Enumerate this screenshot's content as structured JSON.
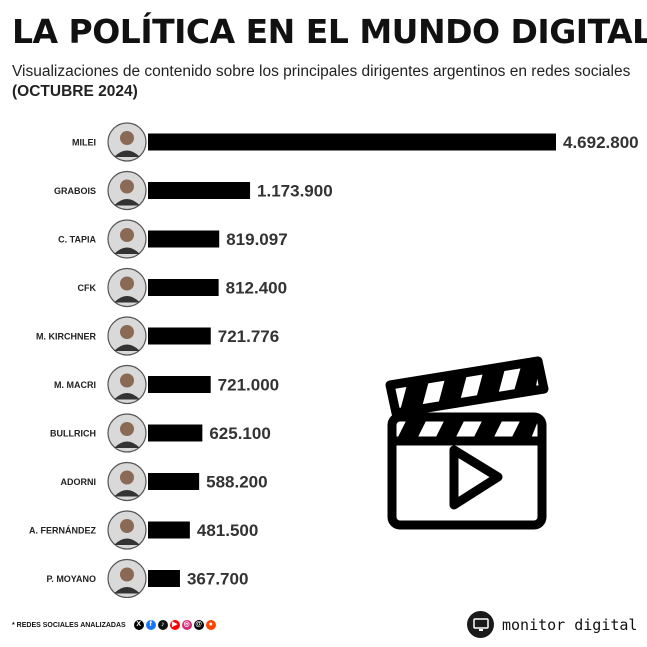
{
  "header": {
    "title": "LA POLÍTICA EN EL MUNDO DIGITAL",
    "subtitle": "Visualizaciones de contenido sobre los principales dirigentes argentinos en redes sociales",
    "subtitle_bold": "(OCTUBRE 2024)"
  },
  "chart_data": {
    "type": "bar",
    "orientation": "horizontal",
    "categories": [
      "MILEI",
      "GRABOIS",
      "C. TAPIA",
      "CFK",
      "M. KIRCHNER",
      "M. MACRI",
      "BULLRICH",
      "ADORNI",
      "A. FERNÁNDEZ",
      "P. MOYANO"
    ],
    "values": [
      4692800,
      1173900,
      819097,
      812400,
      721776,
      721000,
      625100,
      588200,
      481500,
      367700
    ],
    "value_labels": [
      "4.692.800",
      "1.173.900",
      "819.097",
      "812.400",
      "721.776",
      "721.000",
      "625.100",
      "588.200",
      "481.500",
      "367.700"
    ],
    "bar_color": "#000000",
    "grid": false
  },
  "footer": {
    "note": "* REDES SOCIALES ANALIZADAS",
    "socials": [
      "x-icon",
      "facebook-icon",
      "tiktok-icon",
      "youtube-icon",
      "instagram-icon",
      "threads-icon",
      "reddit-icon"
    ],
    "brand": "monitor digital"
  },
  "colors": {
    "text": "#111111",
    "bar": "#000000",
    "value_text": "#333333"
  }
}
